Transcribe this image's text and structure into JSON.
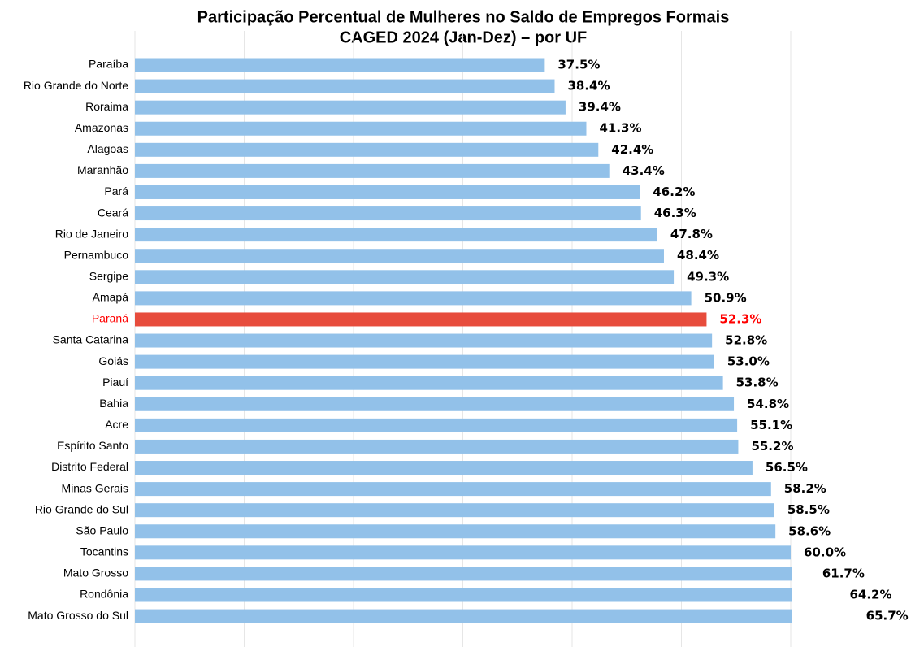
{
  "chart_data": {
    "type": "barh",
    "title": "Participação Percentual de Mulheres no Saldo de Empregos Formais",
    "subtitle": "CAGED 2024 (Jan-Dez) – por UF",
    "categories": [
      "Paraíba",
      "Rio Grande do Norte",
      "Roraima",
      "Amazonas",
      "Alagoas",
      "Maranhão",
      "Pará",
      "Ceará",
      "Rio de Janeiro",
      "Pernambuco",
      "Sergipe",
      "Amapá",
      "Paraná",
      "Santa Catarina",
      "Goiás",
      "Piauí",
      "Bahia",
      "Acre",
      "Espírito Santo",
      "Distrito Federal",
      "Minas Gerais",
      "Rio Grande do Sul",
      "São Paulo",
      "Tocantins",
      "Mato Grosso",
      "Rondônia",
      "Mato Grosso do Sul"
    ],
    "values": [
      37.5,
      38.4,
      39.4,
      41.3,
      42.4,
      43.4,
      46.2,
      46.3,
      47.8,
      48.4,
      49.3,
      50.9,
      52.3,
      52.8,
      53.0,
      53.8,
      54.8,
      55.1,
      55.2,
      56.5,
      58.2,
      58.5,
      58.6,
      60.0,
      61.7,
      64.2,
      65.7
    ],
    "value_labels": [
      "37.5%",
      "38.4%",
      "39.4%",
      "41.3%",
      "42.4%",
      "43.4%",
      "46.2%",
      "46.3%",
      "47.8%",
      "48.4%",
      "49.3%",
      "50.9%",
      "52.3%",
      "52.8%",
      "53.0%",
      "53.8%",
      "54.8%",
      "55.1%",
      "55.2%",
      "56.5%",
      "58.2%",
      "58.5%",
      "58.6%",
      "60.0%",
      "61.7%",
      "64.2%",
      "65.7%"
    ],
    "colors": [
      "#92c1e9",
      "#92c1e9",
      "#92c1e9",
      "#92c1e9",
      "#92c1e9",
      "#92c1e9",
      "#92c1e9",
      "#92c1e9",
      "#92c1e9",
      "#92c1e9",
      "#92c1e9",
      "#92c1e9",
      "#e74c3c",
      "#92c1e9",
      "#92c1e9",
      "#92c1e9",
      "#92c1e9",
      "#92c1e9",
      "#92c1e9",
      "#92c1e9",
      "#92c1e9",
      "#92c1e9",
      "#92c1e9",
      "#92c1e9",
      "#92c1e9",
      "#92c1e9",
      "#92c1e9"
    ],
    "label_colors": [
      "#000000",
      "#000000",
      "#000000",
      "#000000",
      "#000000",
      "#000000",
      "#000000",
      "#000000",
      "#000000",
      "#000000",
      "#000000",
      "#000000",
      "#ff0000",
      "#000000",
      "#000000",
      "#000000",
      "#000000",
      "#000000",
      "#000000",
      "#000000",
      "#000000",
      "#000000",
      "#000000",
      "#000000",
      "#000000",
      "#000000",
      "#000000"
    ],
    "xlim": [
      0,
      60
    ],
    "xticks": [
      0,
      10,
      20,
      30,
      40,
      50,
      60
    ],
    "grid": true
  }
}
